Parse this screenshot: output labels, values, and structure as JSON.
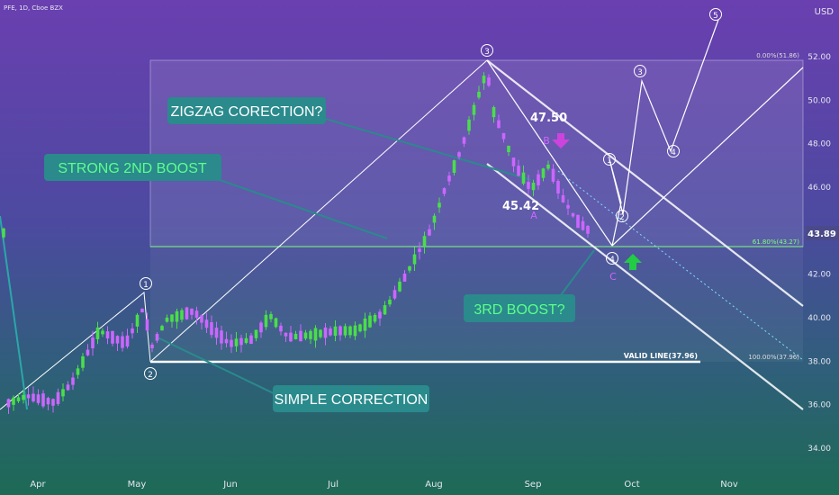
{
  "header": {
    "symbol": "PFE, 1D, Cboe BZX"
  },
  "chart_data": {
    "type": "candlestick",
    "currency": "USD",
    "last_price": "43.89",
    "y_ticks": [
      "34.00",
      "36.00",
      "38.00",
      "40.00",
      "42.00",
      "44.00",
      "46.00",
      "48.00",
      "50.00",
      "52.00"
    ],
    "x_ticks": [
      "Apr",
      "May",
      "Jun",
      "Jul",
      "Aug",
      "Sep",
      "Oct",
      "Nov"
    ],
    "fib_levels": [
      {
        "label": "0.00%(51.86)",
        "value": 51.86
      },
      {
        "label": "61.80%(43.27)",
        "value": 43.27
      },
      {
        "label": "100.00%(37.96)",
        "value": 37.96
      }
    ],
    "valid_line": {
      "label": "VALID LINE(37.96)",
      "value": 37.96
    },
    "callouts": [
      {
        "text": "ZIGZAG CORECTION?"
      },
      {
        "text": "STRONG 2ND BOOST"
      },
      {
        "text": "3RD BOOST?"
      },
      {
        "text": "SIMPLE CORRECTION"
      }
    ],
    "price_annotations": [
      "47.50",
      "45.42"
    ],
    "abc_labels": [
      "A",
      "B",
      "C"
    ],
    "wave_labels": [
      "1",
      "2",
      "3",
      "4",
      "1",
      "2",
      "3",
      "4",
      "5"
    ],
    "colors": {
      "up": "#4ade4a",
      "down": "#cc66ff",
      "line": "#ffffff",
      "fib": "#7fff7f",
      "callout_bg": "#2a8a8c",
      "callout_green": "#5dff8a"
    }
  }
}
